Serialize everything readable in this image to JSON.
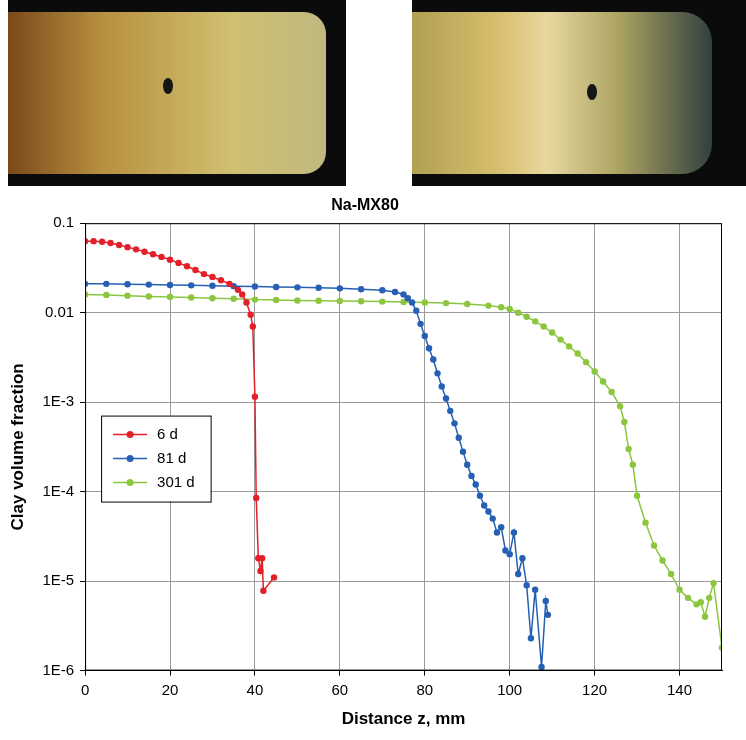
{
  "chart_data": {
    "type": "line",
    "title": "Na-MX80",
    "x_label": "Distance z, mm",
    "y_label": "Clay volume fraction",
    "log": "y",
    "grid": true,
    "legend": "left",
    "xlim": [
      0,
      150
    ],
    "xticks": [
      0,
      20,
      40,
      60,
      80,
      100,
      120,
      140
    ],
    "ylim": [
      1e-06,
      0.1
    ],
    "yticks": [
      {
        "value": 1e-06,
        "label": "1E-6"
      },
      {
        "value": 1e-05,
        "label": "1E-5"
      },
      {
        "value": 0.0001,
        "label": "1E-4"
      },
      {
        "value": 0.001,
        "label": "1E-3"
      },
      0.01,
      0.1
    ],
    "series": [
      {
        "name": "6 d",
        "color": "#e3202a",
        "marker": "circle",
        "line_style": "solid",
        "x": [
          0,
          2,
          4,
          6,
          8,
          10,
          12,
          14,
          16,
          18,
          20,
          22,
          24,
          26,
          28,
          30,
          32,
          34,
          36,
          37,
          38,
          39,
          39.5,
          40,
          40.3,
          40.8,
          41.3,
          41.7,
          42,
          44.5
        ],
        "values": [
          0.063,
          0.063,
          0.062,
          0.06,
          0.057,
          0.054,
          0.051,
          0.048,
          0.045,
          0.042,
          0.039,
          0.036,
          0.033,
          0.03,
          0.027,
          0.025,
          0.023,
          0.021,
          0.018,
          0.016,
          0.013,
          0.0095,
          0.007,
          0.00115,
          8.5e-05,
          1.8e-05,
          1.3e-05,
          1.8e-05,
          7.8e-06,
          1.1e-05
        ]
      },
      {
        "name": "81 d",
        "color": "#2660b4",
        "marker": "circle",
        "line_style": "solid",
        "x": [
          0,
          5,
          10,
          15,
          20,
          25,
          30,
          35,
          40,
          45,
          50,
          55,
          60,
          65,
          70,
          73,
          75,
          76,
          77,
          78,
          79,
          80,
          81,
          82,
          83,
          84,
          85,
          86,
          87,
          88,
          89,
          90,
          91,
          92,
          93,
          94,
          95,
          96,
          97,
          98,
          99,
          100,
          101,
          102,
          103,
          104,
          105,
          106,
          107.5,
          108.5,
          109
        ],
        "values": [
          0.021,
          0.021,
          0.0208,
          0.0206,
          0.0204,
          0.0202,
          0.02,
          0.0198,
          0.0196,
          0.0194,
          0.0192,
          0.019,
          0.0187,
          0.0183,
          0.0178,
          0.017,
          0.016,
          0.0145,
          0.013,
          0.0105,
          0.0075,
          0.0055,
          0.004,
          0.003,
          0.0021,
          0.0015,
          0.0011,
          0.0008,
          0.00058,
          0.0004,
          0.00028,
          0.0002,
          0.00015,
          0.00012,
          9e-05,
          7e-05,
          6e-05,
          5e-05,
          3.5e-05,
          4e-05,
          2.2e-05,
          2e-05,
          3.5e-05,
          1.2e-05,
          1.8e-05,
          9e-06,
          2.3e-06,
          8e-06,
          1.1e-06,
          6e-06,
          4.2e-06
        ]
      },
      {
        "name": "301 d",
        "color": "#8cc63f",
        "marker": "circle",
        "line_style": "solid",
        "x": [
          0,
          5,
          10,
          15,
          20,
          25,
          30,
          35,
          40,
          45,
          50,
          55,
          60,
          65,
          70,
          75,
          80,
          85,
          90,
          95,
          98,
          100,
          102,
          104,
          106,
          108,
          110,
          112,
          114,
          116,
          118,
          120,
          122,
          124,
          126,
          127,
          128,
          129,
          130,
          132,
          134,
          136,
          138,
          140,
          142,
          144,
          145,
          146,
          147,
          148,
          150
        ],
        "values": [
          0.016,
          0.0158,
          0.0155,
          0.0152,
          0.015,
          0.0148,
          0.0145,
          0.0143,
          0.014,
          0.0139,
          0.0137,
          0.0136,
          0.0135,
          0.0134,
          0.0133,
          0.0132,
          0.013,
          0.0128,
          0.0125,
          0.012,
          0.0115,
          0.011,
          0.01,
          0.009,
          0.008,
          0.007,
          0.006,
          0.005,
          0.0042,
          0.0035,
          0.0028,
          0.0022,
          0.0017,
          0.0013,
          0.0009,
          0.0006,
          0.0003,
          0.0002,
          9e-05,
          4.5e-05,
          2.5e-05,
          1.7e-05,
          1.2e-05,
          8e-06,
          6.5e-06,
          5.5e-06,
          5.8e-06,
          4e-06,
          6.5e-06,
          9.5e-06,
          1.8e-06
        ]
      }
    ]
  }
}
